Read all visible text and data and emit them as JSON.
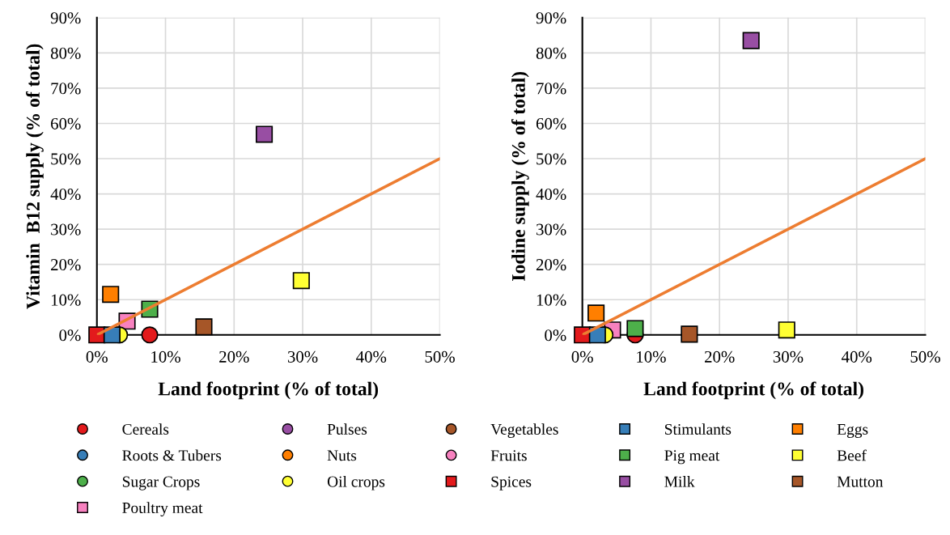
{
  "chart_data": [
    {
      "type": "scatter",
      "xlabel": "Land footprint (% of total)",
      "ylabel": "Vitamin  B12 supply (% of total)",
      "xlim": [
        0,
        50
      ],
      "ylim": [
        0,
        90
      ],
      "xticks": [
        {
          "value": 0,
          "label": "0%"
        },
        {
          "value": 10,
          "label": "10%"
        },
        {
          "value": 20,
          "label": "20%"
        },
        {
          "value": 30,
          "label": "30%"
        },
        {
          "value": 40,
          "label": "40%"
        },
        {
          "value": 50,
          "label": "50%"
        }
      ],
      "yticks": [
        {
          "value": 0,
          "label": "0%"
        },
        {
          "value": 10,
          "label": "10%"
        },
        {
          "value": 20,
          "label": "20%"
        },
        {
          "value": 30,
          "label": "30%"
        },
        {
          "value": 40,
          "label": "40%"
        },
        {
          "value": 50,
          "label": "50%"
        },
        {
          "value": 60,
          "label": "60%"
        },
        {
          "value": 70,
          "label": "70%"
        },
        {
          "value": 80,
          "label": "80%"
        },
        {
          "value": 90,
          "label": "90%"
        }
      ],
      "grid": true,
      "legend": "bottom",
      "series": [
        {
          "name": "Cereals",
          "color": "#e31a1c",
          "marker": "circle",
          "x": [
            7.7
          ],
          "values": [
            0
          ]
        },
        {
          "name": "Roots & Tubers",
          "color": "#377eb8",
          "marker": "circle",
          "x": [
            null
          ],
          "values": [
            null
          ]
        },
        {
          "name": "Sugar Crops",
          "color": "#4daf4a",
          "marker": "circle",
          "x": [
            null
          ],
          "values": [
            null
          ]
        },
        {
          "name": "Poultry meat",
          "color": "#f781bf",
          "marker": "square",
          "x": [
            4.4
          ],
          "values": [
            3.9
          ]
        },
        {
          "name": "Pulses",
          "color": "#984ea3",
          "marker": "circle",
          "x": [
            null
          ],
          "values": [
            null
          ]
        },
        {
          "name": "Nuts",
          "color": "#ff7f00",
          "marker": "circle",
          "x": [
            null
          ],
          "values": [
            null
          ]
        },
        {
          "name": "Oil crops",
          "color": "#ffff33",
          "marker": "circle",
          "x": [
            3.3
          ],
          "values": [
            0
          ]
        },
        {
          "name": "Vegetables",
          "color": "#a65628",
          "marker": "circle",
          "x": [
            null
          ],
          "values": [
            null
          ]
        },
        {
          "name": "Fruits",
          "color": "#f781bf",
          "marker": "circle",
          "x": [
            null
          ],
          "values": [
            null
          ]
        },
        {
          "name": "Spices",
          "color": "#e31a1c",
          "marker": "square",
          "x": [
            0
          ],
          "values": [
            0
          ]
        },
        {
          "name": "Stimulants",
          "color": "#377eb8",
          "marker": "square",
          "x": [
            2.2
          ],
          "values": [
            0
          ]
        },
        {
          "name": "Pig meat",
          "color": "#4daf4a",
          "marker": "square",
          "x": [
            7.7
          ],
          "values": [
            7.3
          ]
        },
        {
          "name": "Milk",
          "color": "#984ea3",
          "marker": "square",
          "x": [
            24.4
          ],
          "values": [
            56.9
          ]
        },
        {
          "name": "Eggs",
          "color": "#ff7f00",
          "marker": "square",
          "x": [
            2.0
          ],
          "values": [
            11.5
          ]
        },
        {
          "name": "Beef",
          "color": "#ffff33",
          "marker": "square",
          "x": [
            29.8
          ],
          "values": [
            15.4
          ]
        },
        {
          "name": "Mutton",
          "color": "#a65628",
          "marker": "square",
          "x": [
            15.6
          ],
          "values": [
            2.3
          ]
        },
        {
          "type": "line",
          "color": "#ed7d31",
          "marker": "none",
          "x": [
            0,
            50
          ],
          "values": [
            0,
            50
          ]
        }
      ]
    },
    {
      "type": "scatter",
      "xlabel": "Land footprint (% of total)",
      "ylabel": "Iodine supply (% of total)",
      "xlim": [
        0,
        50
      ],
      "ylim": [
        0,
        90
      ],
      "xticks": [
        {
          "value": 0,
          "label": "0%"
        },
        {
          "value": 10,
          "label": "10%"
        },
        {
          "value": 20,
          "label": "20%"
        },
        {
          "value": 30,
          "label": "30%"
        },
        {
          "value": 40,
          "label": "40%"
        },
        {
          "value": 50,
          "label": "50%"
        }
      ],
      "yticks": [
        {
          "value": 0,
          "label": "0%"
        },
        {
          "value": 10,
          "label": "10%"
        },
        {
          "value": 20,
          "label": "20%"
        },
        {
          "value": 30,
          "label": "30%"
        },
        {
          "value": 40,
          "label": "40%"
        },
        {
          "value": 50,
          "label": "50%"
        },
        {
          "value": 60,
          "label": "60%"
        },
        {
          "value": 70,
          "label": "70%"
        },
        {
          "value": 80,
          "label": "80%"
        },
        {
          "value": 90,
          "label": "90%"
        }
      ],
      "grid": true,
      "series": [
        {
          "color": "#e31a1c",
          "marker": "circle",
          "x": [
            7.7
          ],
          "values": [
            0
          ]
        },
        {
          "color": "#f781bf",
          "marker": "square",
          "x": [
            4.4
          ],
          "values": [
            1.4
          ]
        },
        {
          "color": "#ffff33",
          "marker": "circle",
          "x": [
            3.3
          ],
          "values": [
            0
          ]
        },
        {
          "color": "#a65628",
          "marker": "circle",
          "x": [
            null
          ],
          "values": [
            null
          ]
        },
        {
          "color": "#f781bf",
          "marker": "circle",
          "x": [
            null
          ],
          "values": [
            null
          ]
        },
        {
          "color": "#e31a1c",
          "marker": "square",
          "x": [
            0
          ],
          "values": [
            0
          ]
        },
        {
          "color": "#377eb8",
          "marker": "square",
          "x": [
            2.2
          ],
          "values": [
            0
          ]
        },
        {
          "color": "#4daf4a",
          "marker": "square",
          "x": [
            7.7
          ],
          "values": [
            1.8
          ]
        },
        {
          "color": "#984ea3",
          "marker": "square",
          "x": [
            24.6
          ],
          "values": [
            83.5
          ]
        },
        {
          "color": "#ff7f00",
          "marker": "square",
          "x": [
            2.0
          ],
          "values": [
            6.2
          ]
        },
        {
          "color": "#ffff33",
          "marker": "square",
          "x": [
            29.8
          ],
          "values": [
            1.4
          ]
        },
        {
          "color": "#a65628",
          "marker": "square",
          "x": [
            15.6
          ],
          "values": [
            0.2
          ]
        },
        {
          "type": "line",
          "color": "#ed7d31",
          "marker": "none",
          "x": [
            0,
            50
          ],
          "values": [
            0,
            50
          ]
        }
      ]
    }
  ]
}
